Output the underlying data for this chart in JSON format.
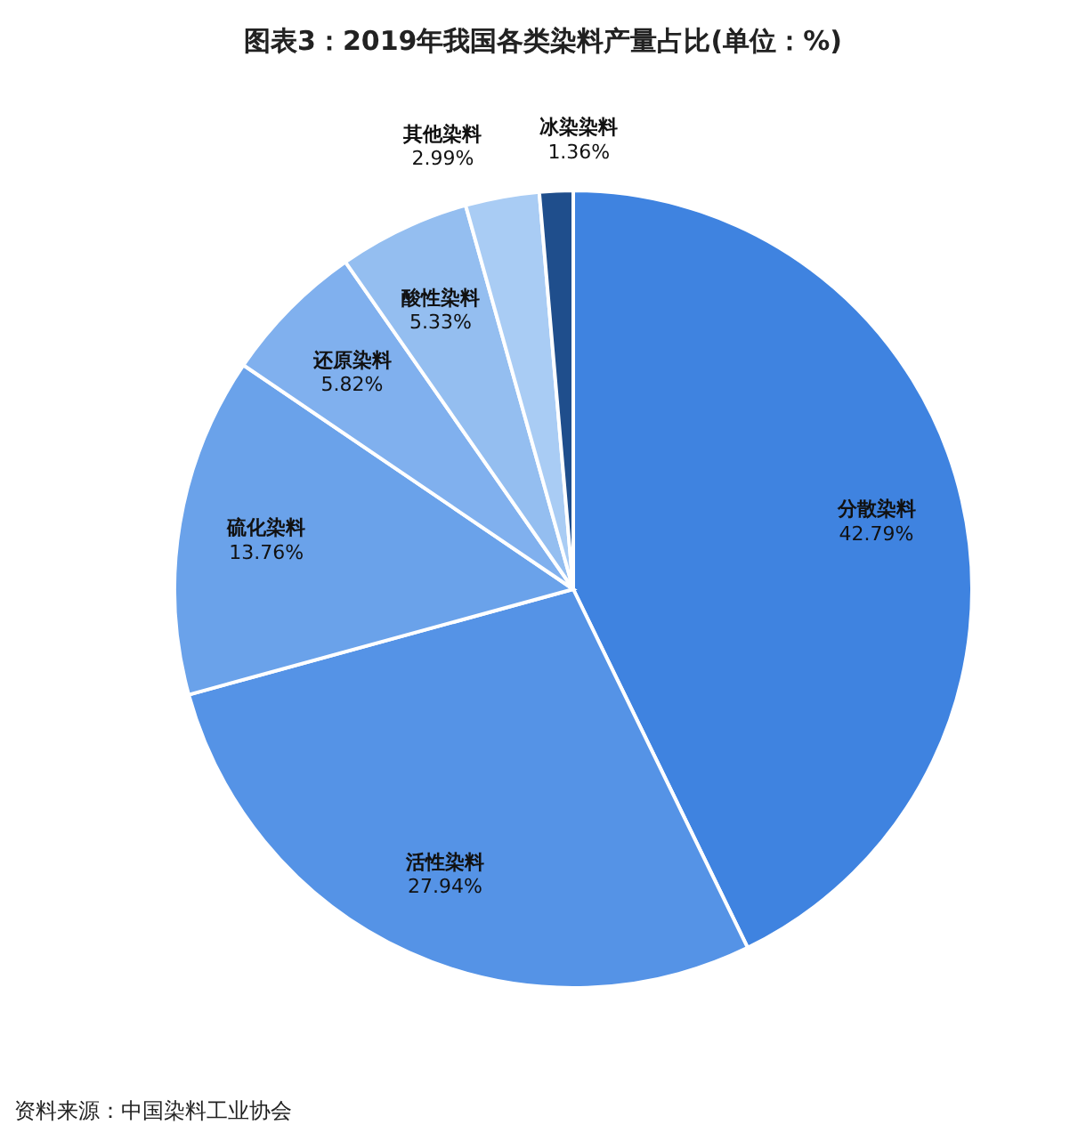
{
  "chart_data": {
    "type": "pie",
    "title": "图表3：2019年我国各类染料产量占比(单位：%)",
    "categories": [
      "分散染料",
      "活性染料",
      "硫化染料",
      "还原染料",
      "酸性染料",
      "其他染料",
      "冰染染料"
    ],
    "values": [
      42.79,
      27.94,
      13.76,
      5.82,
      5.33,
      2.99,
      1.36
    ],
    "colors": [
      "#3f83e0",
      "#5593e6",
      "#6aa2ea",
      "#80b0ee",
      "#94bef0",
      "#a9ccf4",
      "#1f4e8c"
    ],
    "value_labels": [
      "42.79%",
      "27.94%",
      "13.76%",
      "5.82%",
      "5.33%",
      "2.99%",
      "1.36%"
    ],
    "annotations": [
      "资料来源：中国染料工业协会"
    ]
  }
}
